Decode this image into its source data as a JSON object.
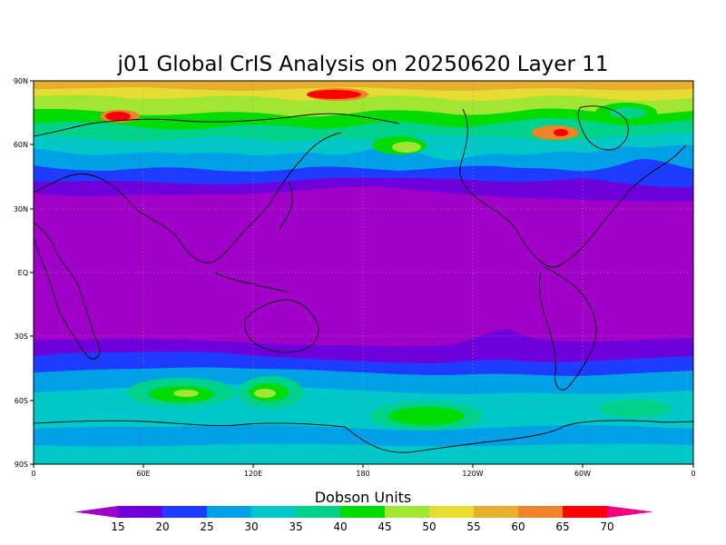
{
  "title": "j01 Global CrIS Analysis on 20250620 Layer 11",
  "colorbar": {
    "label": "Dobson Units",
    "ticks": [
      "15",
      "20",
      "25",
      "30",
      "35",
      "40",
      "45",
      "50",
      "55",
      "60",
      "65",
      "70"
    ],
    "colors": [
      "#a000c8",
      "#6e00dc",
      "#1e3cff",
      "#00a0e6",
      "#00c8c8",
      "#00d28c",
      "#00dc00",
      "#a0e632",
      "#e6dc32",
      "#e6af2d",
      "#f08228",
      "#fa0000",
      "#f00082"
    ]
  },
  "axes": {
    "x_ticks": [
      "0",
      "60E",
      "120E",
      "180",
      "120W",
      "60W",
      "0"
    ],
    "y_ticks": [
      "90N",
      "60N",
      "30N",
      "EQ",
      "30S",
      "60S",
      "90S"
    ]
  },
  "chart_data": {
    "type": "heatmap",
    "title": "j01 Global CrIS Analysis on 20250620 Layer 11",
    "units": "Dobson Units",
    "levels": [
      15,
      20,
      25,
      30,
      35,
      40,
      45,
      50,
      55,
      60,
      65,
      70
    ],
    "x_range": [
      0,
      360
    ],
    "y_range": [
      -90,
      90
    ],
    "grid": true
  }
}
